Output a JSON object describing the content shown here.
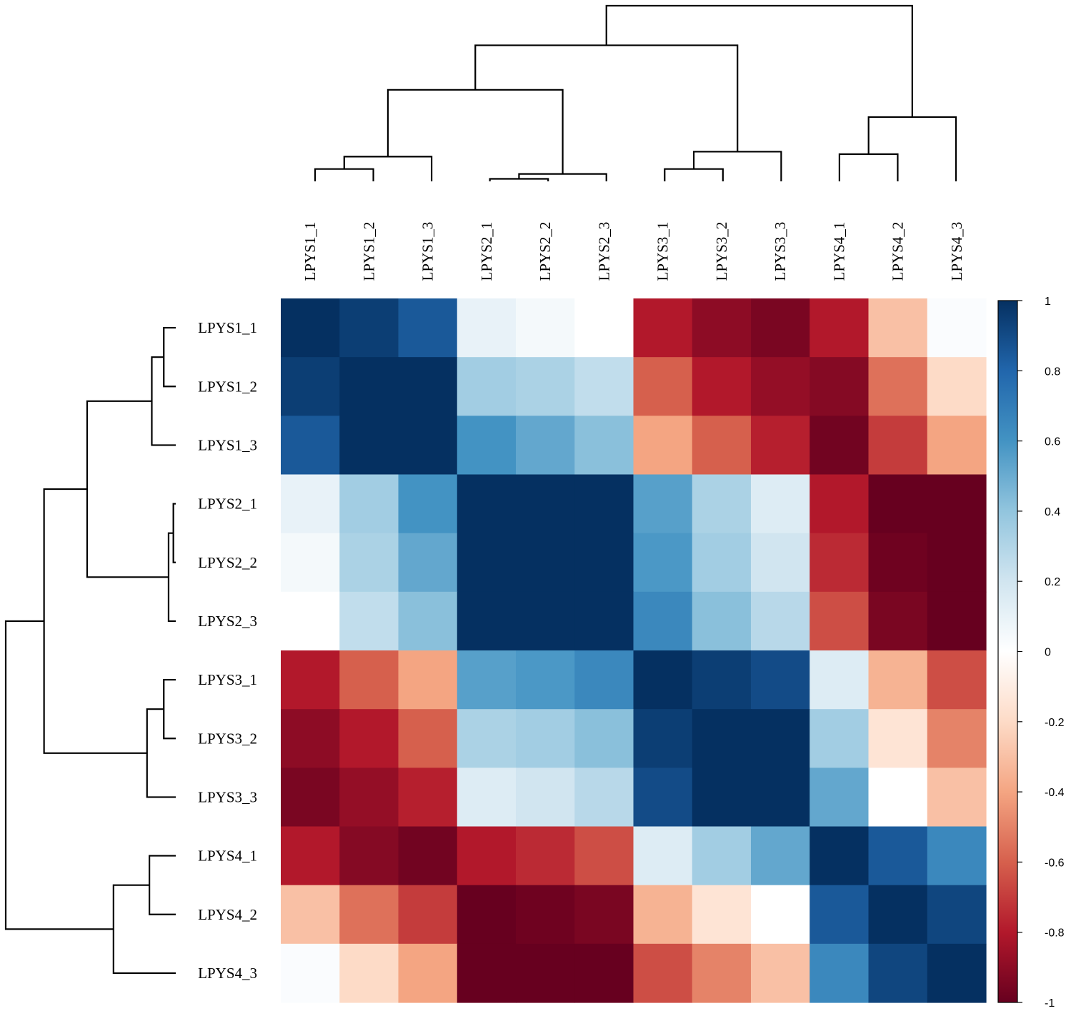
{
  "chart_data": {
    "type": "heatmap",
    "title": "",
    "row_labels": [
      "LPYS1_1",
      "LPYS1_2",
      "LPYS1_3",
      "LPYS2_1",
      "LPYS2_2",
      "LPYS2_3",
      "LPYS3_1",
      "LPYS3_2",
      "LPYS3_3",
      "LPYS4_1",
      "LPYS4_2",
      "LPYS4_3"
    ],
    "col_labels": [
      "LPYS1_1",
      "LPYS1_2",
      "LPYS1_3",
      "LPYS2_1",
      "LPYS2_2",
      "LPYS2_3",
      "LPYS3_1",
      "LPYS3_2",
      "LPYS3_3",
      "LPYS4_1",
      "LPYS4_2",
      "LPYS4_3"
    ],
    "values": [
      [
        1.0,
        0.95,
        0.85,
        0.1,
        0.05,
        0.0,
        -0.8,
        -0.9,
        -0.95,
        -0.8,
        -0.3,
        0.02
      ],
      [
        0.95,
        1.0,
        1.0,
        0.35,
        0.32,
        0.25,
        -0.6,
        -0.8,
        -0.88,
        -0.92,
        -0.55,
        -0.2
      ],
      [
        0.85,
        1.0,
        1.0,
        0.6,
        0.52,
        0.42,
        -0.4,
        -0.6,
        -0.78,
        -0.97,
        -0.7,
        -0.4
      ],
      [
        0.1,
        0.35,
        0.6,
        1.0,
        1.0,
        1.0,
        0.55,
        0.32,
        0.15,
        -0.8,
        -1.0,
        -1.0
      ],
      [
        0.05,
        0.32,
        0.52,
        1.0,
        1.0,
        1.0,
        0.58,
        0.35,
        0.2,
        -0.75,
        -0.98,
        -1.0
      ],
      [
        0.0,
        0.25,
        0.42,
        1.0,
        1.0,
        1.0,
        0.65,
        0.42,
        0.28,
        -0.65,
        -0.95,
        -1.0
      ],
      [
        -0.8,
        -0.6,
        -0.4,
        0.55,
        0.58,
        0.65,
        1.0,
        0.95,
        0.9,
        0.15,
        -0.35,
        -0.65
      ],
      [
        -0.9,
        -0.8,
        -0.6,
        0.32,
        0.35,
        0.42,
        0.95,
        1.0,
        1.0,
        0.35,
        -0.15,
        -0.5
      ],
      [
        -0.95,
        -0.88,
        -0.78,
        0.15,
        0.2,
        0.28,
        0.9,
        1.0,
        1.0,
        0.52,
        0.0,
        -0.3
      ],
      [
        -0.8,
        -0.92,
        -0.97,
        -0.8,
        -0.75,
        -0.65,
        0.15,
        0.35,
        0.52,
        1.0,
        0.85,
        0.65
      ],
      [
        -0.3,
        -0.55,
        -0.7,
        -1.0,
        -0.98,
        -0.95,
        -0.35,
        -0.15,
        0.0,
        0.85,
        1.0,
        0.92
      ],
      [
        0.02,
        -0.2,
        -0.4,
        -1.0,
        -1.0,
        -1.0,
        -0.65,
        -0.5,
        -0.3,
        0.65,
        0.92,
        1.0
      ]
    ],
    "color_scale": {
      "min": -1,
      "max": 1,
      "ticks": [
        "1",
        "0.8",
        "0.6",
        "0.4",
        "0.2",
        "0",
        "-0.2",
        "-0.4",
        "-0.6",
        "-0.8",
        "-1"
      ],
      "stops": [
        "#67001F",
        "#B2182B",
        "#D6604D",
        "#F4A582",
        "#FDDBC7",
        "#FFFFFF",
        "#D1E5F0",
        "#92C5DE",
        "#4393C3",
        "#2166AC",
        "#053061"
      ]
    },
    "dendrogram_order": [
      "LPYS1_1",
      "LPYS1_2",
      "LPYS1_3",
      "LPYS2_1",
      "LPYS2_2",
      "LPYS2_3",
      "LPYS3_1",
      "LPYS3_2",
      "LPYS3_3",
      "LPYS4_1",
      "LPYS4_2",
      "LPYS4_3"
    ],
    "dendrogram_merges": [
      {
        "left": [
          0
        ],
        "right": [
          1
        ],
        "height": 0.05
      },
      {
        "left": [
          0,
          1
        ],
        "right": [
          2
        ],
        "height": 0.1
      },
      {
        "left": [
          3
        ],
        "right": [
          4
        ],
        "height": 0.01
      },
      {
        "left": [
          3,
          4
        ],
        "right": [
          5
        ],
        "height": 0.03
      },
      {
        "left": [
          0,
          1,
          2
        ],
        "right": [
          3,
          4,
          5
        ],
        "height": 0.37
      },
      {
        "left": [
          6
        ],
        "right": [
          7
        ],
        "height": 0.05
      },
      {
        "left": [
          6,
          7
        ],
        "right": [
          8
        ],
        "height": 0.12
      },
      {
        "left": [
          0,
          1,
          2,
          3,
          4,
          5
        ],
        "right": [
          6,
          7,
          8
        ],
        "height": 0.55
      },
      {
        "left": [
          9
        ],
        "right": [
          10
        ],
        "height": 0.11
      },
      {
        "left": [
          9,
          10
        ],
        "right": [
          11
        ],
        "height": 0.26
      },
      {
        "left": [
          0,
          1,
          2,
          3,
          4,
          5,
          6,
          7,
          8
        ],
        "right": [
          9,
          10,
          11
        ],
        "height": 0.71
      }
    ]
  }
}
